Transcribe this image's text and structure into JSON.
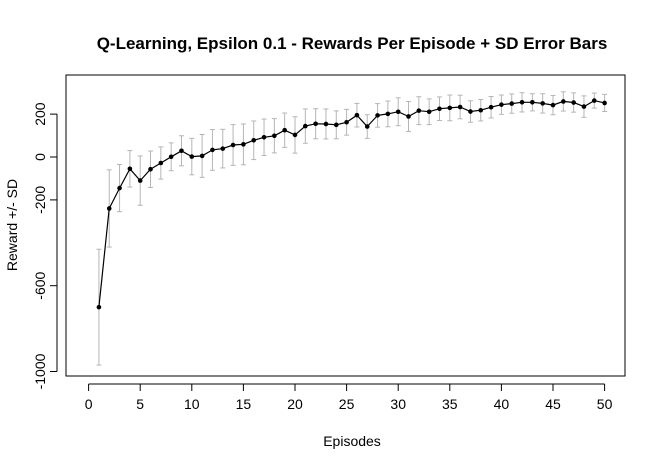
{
  "chart_data": {
    "type": "line",
    "title": "Q-Learning, Epsilon 0.1 - Rewards Per Episode + SD Error Bars",
    "xlabel": "Episodes",
    "ylabel": "Reward +/- SD",
    "xlim": [
      0,
      51
    ],
    "ylim": [
      -1000,
      300
    ],
    "x_ticks": [
      "0",
      "5",
      "10",
      "15",
      "20",
      "25",
      "30",
      "35",
      "40",
      "45",
      "50"
    ],
    "y_ticks": [
      "-1000",
      "-600",
      "-200",
      "0",
      "200"
    ],
    "grid": false,
    "colors": {
      "line": "#000000",
      "points": "#000000",
      "error_bars": "#b5b5b5"
    },
    "series": [
      {
        "x": [
          1,
          2,
          3,
          4,
          5,
          6,
          7,
          8,
          9,
          10,
          11,
          12,
          13,
          14,
          15,
          16,
          17,
          18,
          19,
          20,
          21,
          22,
          23,
          24,
          25,
          26,
          27,
          28,
          29,
          30,
          31,
          32,
          33,
          34,
          35,
          36,
          37,
          38,
          39,
          40,
          41,
          42,
          43,
          44,
          45,
          46,
          47,
          48,
          49,
          50
        ],
        "values": [
          -700,
          -240,
          -145,
          -55,
          -110,
          -57,
          -28,
          1,
          29,
          2,
          5,
          33,
          39,
          56,
          59,
          78,
          92,
          99,
          125,
          103,
          144,
          155,
          154,
          150,
          162,
          195,
          142,
          194,
          201,
          211,
          189,
          216,
          211,
          225,
          229,
          233,
          212,
          218,
          232,
          244,
          249,
          255,
          255,
          250,
          242,
          259,
          254,
          235,
          263,
          252
        ],
        "sd": [
          270,
          180,
          110,
          85,
          115,
          85,
          75,
          65,
          70,
          85,
          100,
          95,
          90,
          95,
          95,
          90,
          85,
          80,
          80,
          85,
          80,
          70,
          70,
          65,
          60,
          55,
          55,
          55,
          60,
          65,
          70,
          65,
          60,
          55,
          60,
          55,
          50,
          50,
          50,
          45,
          45,
          45,
          40,
          45,
          45,
          45,
          45,
          50,
          35,
          40
        ]
      }
    ]
  }
}
